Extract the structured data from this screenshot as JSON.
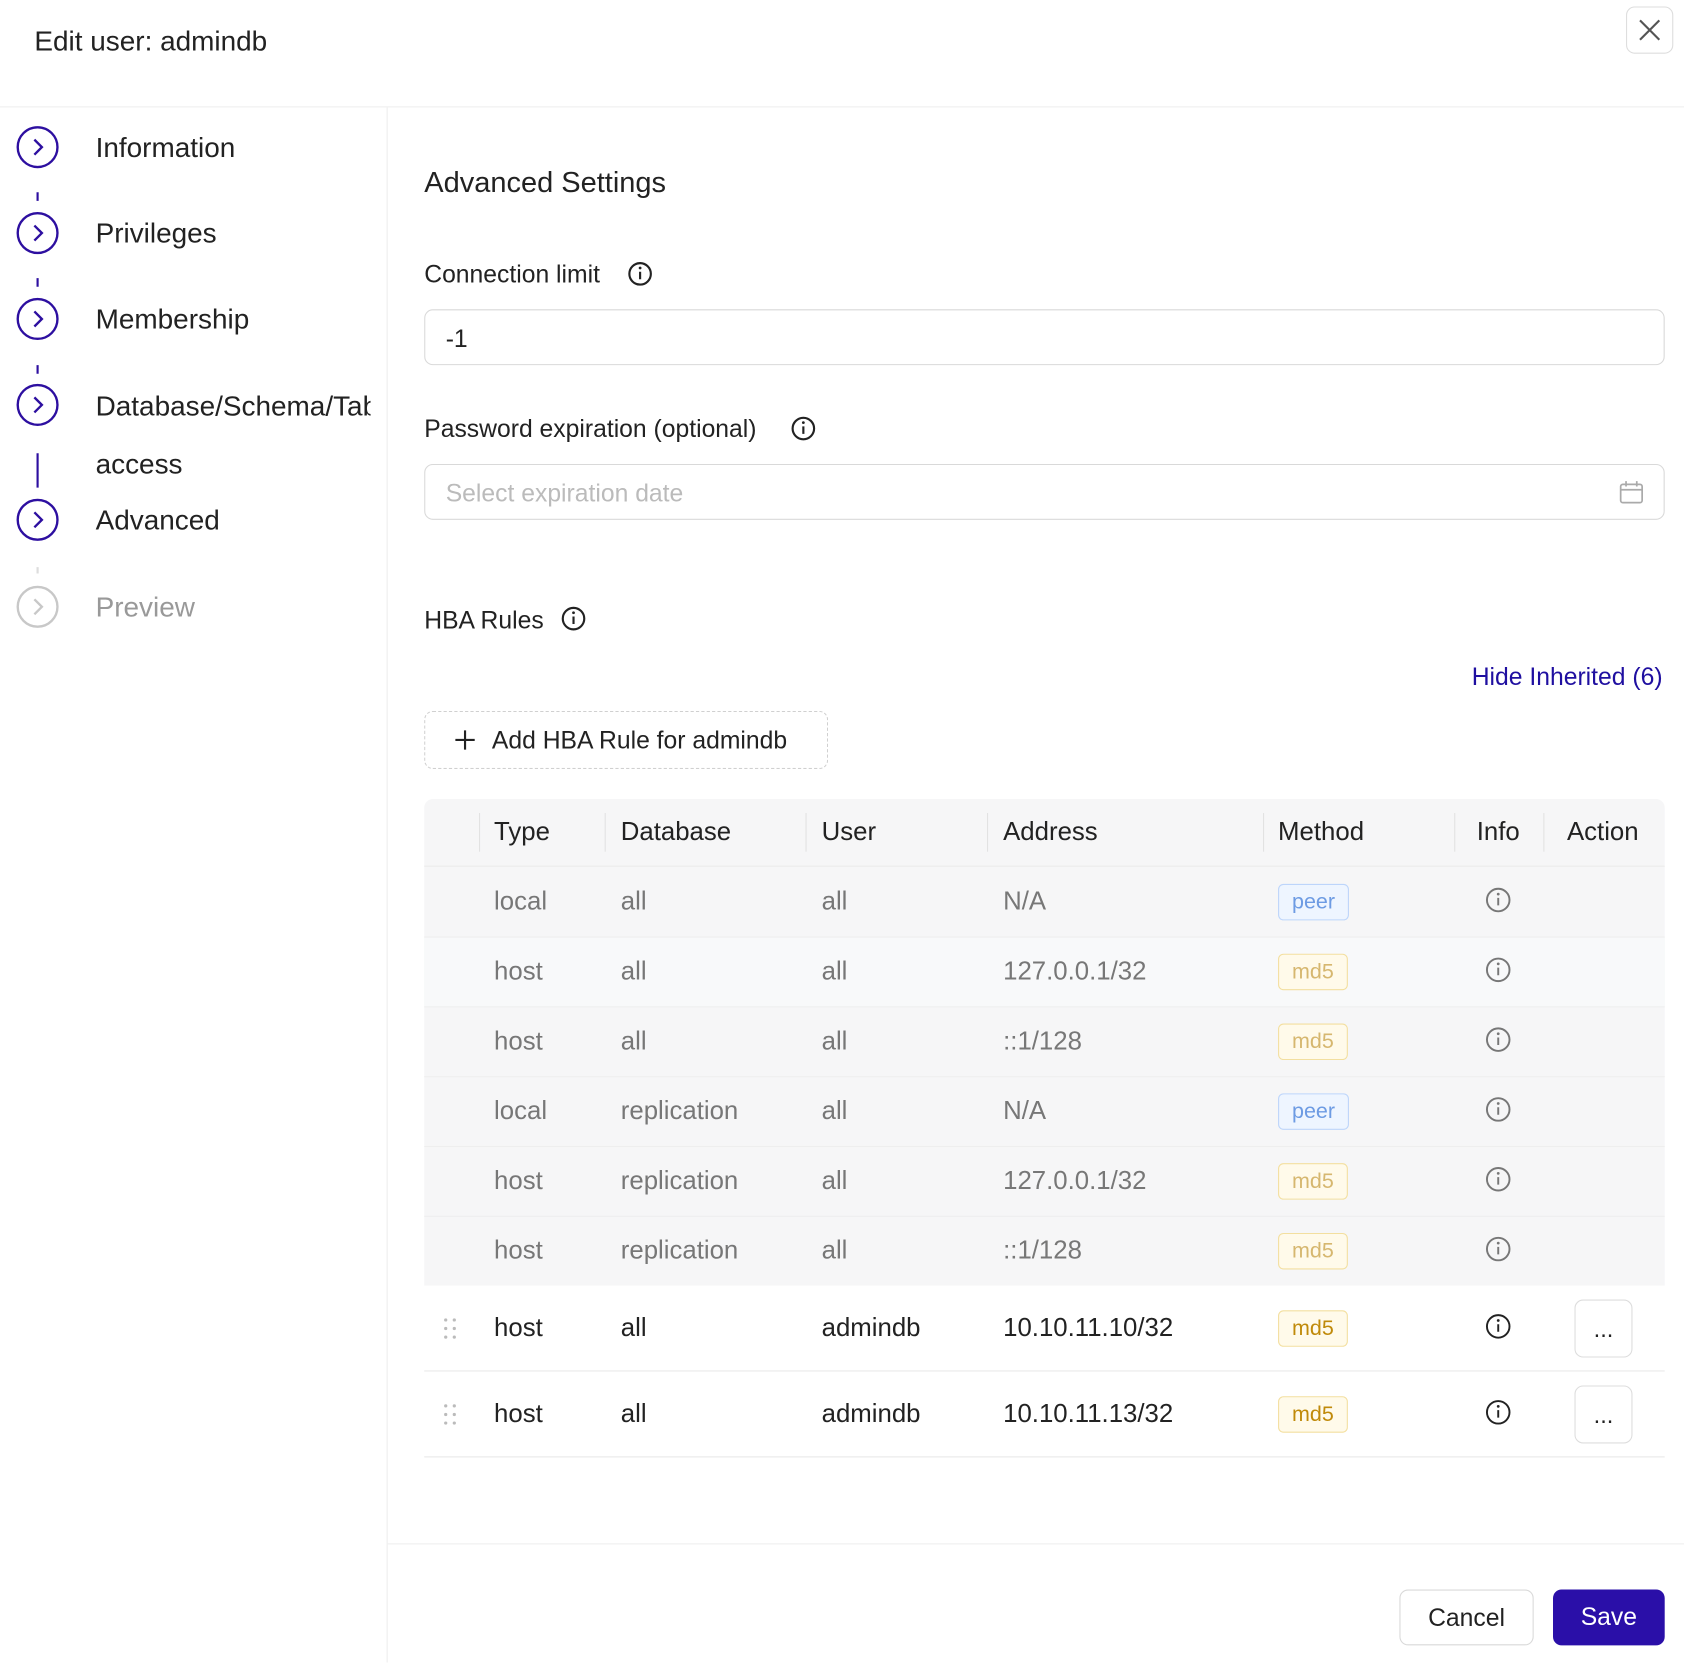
{
  "header": {
    "title": "Edit user: admindb"
  },
  "steps": [
    {
      "label": "Information",
      "state": "done"
    },
    {
      "label": "Privileges",
      "state": "done"
    },
    {
      "label": "Membership",
      "state": "done"
    },
    {
      "label": "Database/Schema/Table access",
      "state": "done"
    },
    {
      "label": "Advanced",
      "state": "done"
    },
    {
      "label": "Preview",
      "state": "pending"
    }
  ],
  "form": {
    "section_title": "Advanced Settings",
    "connection_limit": {
      "label": "Connection limit",
      "value": "-1"
    },
    "password_expiration": {
      "label": "Password expiration (optional)",
      "placeholder": "Select expiration date"
    }
  },
  "hba": {
    "title": "HBA Rules",
    "toggle": "Hide Inherited (6)",
    "add_button": "Add HBA Rule for admindb",
    "columns": [
      "Type",
      "Database",
      "User",
      "Address",
      "Method",
      "Info",
      "Action"
    ],
    "rows": [
      {
        "type": "local",
        "database": "all",
        "user": "all",
        "address": "N/A",
        "method": "peer",
        "inherited": true
      },
      {
        "type": "host",
        "database": "all",
        "user": "all",
        "address": "127.0.0.1/32",
        "method": "md5",
        "inherited": true
      },
      {
        "type": "host",
        "database": "all",
        "user": "all",
        "address": "::1/128",
        "method": "md5",
        "inherited": true
      },
      {
        "type": "local",
        "database": "replication",
        "user": "all",
        "address": "N/A",
        "method": "peer",
        "inherited": true
      },
      {
        "type": "host",
        "database": "replication",
        "user": "all",
        "address": "127.0.0.1/32",
        "method": "md5",
        "inherited": true
      },
      {
        "type": "host",
        "database": "replication",
        "user": "all",
        "address": "::1/128",
        "method": "md5",
        "inherited": true
      },
      {
        "type": "host",
        "database": "all",
        "user": "admindb",
        "address": "10.10.11.10/32",
        "method": "md5",
        "inherited": false,
        "action": "..."
      },
      {
        "type": "host",
        "database": "all",
        "user": "admindb",
        "address": "10.10.11.13/32",
        "method": "md5",
        "inherited": false,
        "action": "..."
      }
    ]
  },
  "footer": {
    "cancel": "Cancel",
    "save": "Save"
  }
}
